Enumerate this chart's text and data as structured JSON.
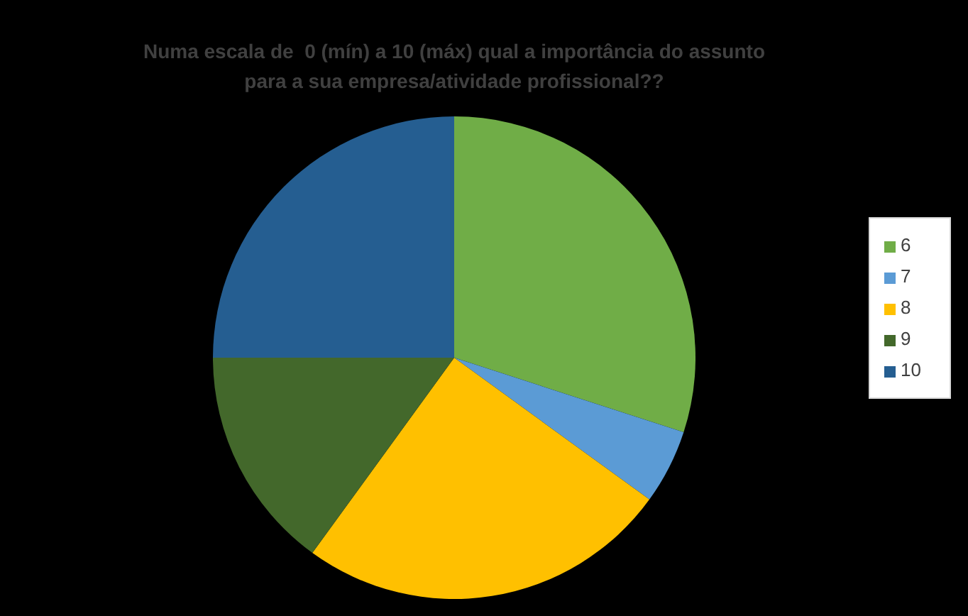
{
  "chart_data": {
    "type": "pie",
    "title": "Numa escala de  0 (mín) a 10 (máx) qual a importância do assunto\npara a sua empresa/atividade profissional??",
    "categories": [
      "6",
      "7",
      "8",
      "9",
      "10"
    ],
    "values": [
      30,
      5,
      25,
      15,
      25
    ],
    "colors": [
      "#70ad47",
      "#5b9bd5",
      "#ffc000",
      "#43682b",
      "#255e91"
    ],
    "legend": "right"
  }
}
